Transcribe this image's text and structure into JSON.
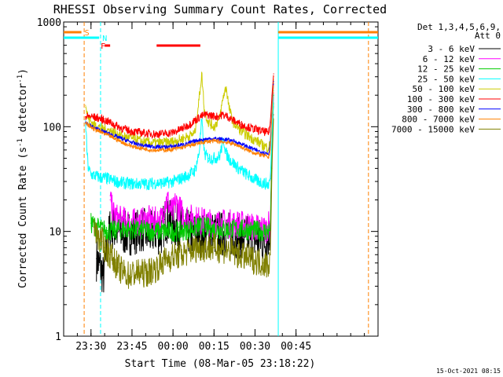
{
  "chart_data": {
    "type": "line",
    "title": "RHESSI Observing Summary Count Rates, Corrected",
    "ylabel_prefix": "Corrected Count Rate (s",
    "ylabel_exp": "-1",
    "ylabel_suffix": " detector",
    "ylabel_close": ")",
    "xlabel": "Start Time (08-Mar-05 23:18:22)",
    "y_scale": "log",
    "ylim": [
      1,
      1000
    ],
    "y_ticks": [
      {
        "label": "1",
        "value": 1
      },
      {
        "label": "10",
        "value": 10
      },
      {
        "label": "100",
        "value": 100
      },
      {
        "label": "1000",
        "value": 1000
      }
    ],
    "x_range_min": [
      -40,
      75
    ],
    "x_ticks": [
      {
        "label": "23:30",
        "min": -30
      },
      {
        "label": "23:45",
        "min": -15
      },
      {
        "label": "00:00",
        "min": 0
      },
      {
        "label": "00:15",
        "min": 15
      },
      {
        "label": "00:30",
        "min": 30
      },
      {
        "label": "00:45",
        "min": 45
      }
    ],
    "legend_header": [
      "Det 1,3,4,5,6,9,",
      "Att 0"
    ],
    "series": [
      {
        "name": "3 - 6 keV",
        "color": "#000000",
        "points": [
          [
            -28,
            5.5
          ],
          [
            -27,
            4.8
          ],
          [
            -26,
            4.2
          ],
          [
            -25.5,
            3.6
          ],
          [
            -23,
            11
          ],
          [
            -20,
            10
          ],
          [
            -17,
            9.5
          ],
          [
            -15,
            9.8
          ],
          [
            -13,
            10
          ],
          [
            -11,
            10.5
          ],
          [
            -9,
            9.2
          ],
          [
            -7,
            10
          ],
          [
            -4,
            9.5
          ],
          [
            -3,
            13
          ],
          [
            -1,
            12
          ],
          [
            2,
            11
          ],
          [
            5,
            10
          ],
          [
            8,
            9.5
          ],
          [
            11,
            9
          ],
          [
            14,
            9.5
          ],
          [
            17,
            9.5
          ],
          [
            20,
            9.5
          ],
          [
            23,
            9.2
          ],
          [
            26,
            8.8
          ],
          [
            29,
            8.5
          ],
          [
            32,
            8.2
          ],
          [
            34,
            8.0
          ],
          [
            35.6,
            10
          ],
          [
            36.2,
            60
          ],
          [
            36.8,
            200
          ]
        ]
      },
      {
        "name": "6 - 12 keV",
        "color": "#ff00ff",
        "points": [
          [
            -23,
            20
          ],
          [
            -22,
            15
          ],
          [
            -20,
            13
          ],
          [
            -17,
            12.5
          ],
          [
            -15,
            12.2
          ],
          [
            -13,
            12.2
          ],
          [
            -11,
            12.5
          ],
          [
            -9,
            13
          ],
          [
            -7,
            12.5
          ],
          [
            -4,
            13
          ],
          [
            -3,
            19
          ],
          [
            -2,
            20
          ],
          [
            -1,
            16
          ],
          [
            0,
            15
          ],
          [
            1,
            19
          ],
          [
            2,
            17
          ],
          [
            4,
            14
          ],
          [
            6,
            13.5
          ],
          [
            8,
            13
          ],
          [
            11,
            12.5
          ],
          [
            14,
            12
          ],
          [
            17,
            12
          ],
          [
            20,
            12
          ],
          [
            23,
            11.8
          ],
          [
            26,
            11.5
          ],
          [
            29,
            11
          ],
          [
            32,
            10.8
          ],
          [
            34,
            10.5
          ],
          [
            35.6,
            12
          ],
          [
            36.2,
            70
          ],
          [
            36.8,
            210
          ]
        ]
      },
      {
        "name": "12 - 25 keV",
        "color": "#00cc00",
        "points": [
          [
            -30,
            12
          ],
          [
            -28,
            11
          ],
          [
            -26,
            10.5
          ],
          [
            -24,
            10.2
          ],
          [
            -22,
            10
          ],
          [
            -20,
            10.5
          ],
          [
            -17,
            10.5
          ],
          [
            -15,
            10.4
          ],
          [
            -13,
            10.3
          ],
          [
            -11,
            10.3
          ],
          [
            -9,
            10.2
          ],
          [
            -7,
            10
          ],
          [
            -4,
            10
          ],
          [
            -2,
            10
          ],
          [
            0,
            10
          ],
          [
            3,
            10
          ],
          [
            6,
            10.5
          ],
          [
            9,
            11
          ],
          [
            12,
            11
          ],
          [
            15,
            10.5
          ],
          [
            18,
            10.5
          ],
          [
            21,
            10.5
          ],
          [
            24,
            10.5
          ],
          [
            27,
            10.3
          ],
          [
            30,
            10.2
          ],
          [
            33,
            10
          ],
          [
            35,
            10
          ],
          [
            35.6,
            11
          ],
          [
            36.2,
            60
          ],
          [
            36.8,
            200
          ]
        ]
      },
      {
        "name": "25 - 50 keV",
        "color": "#00ffff",
        "points": [
          [
            -32,
            115
          ],
          [
            -31.5,
            60
          ],
          [
            -31,
            40
          ],
          [
            -30,
            35
          ],
          [
            -27,
            33
          ],
          [
            -24,
            32
          ],
          [
            -21,
            30
          ],
          [
            -18,
            29
          ],
          [
            -15,
            28.5
          ],
          [
            -12,
            28.5
          ],
          [
            -9,
            28.5
          ],
          [
            -6,
            29
          ],
          [
            -3,
            29
          ],
          [
            0,
            30
          ],
          [
            3,
            32
          ],
          [
            6,
            35
          ],
          [
            8,
            38
          ],
          [
            9.5,
            55
          ],
          [
            10.5,
            115
          ],
          [
            11.5,
            55
          ],
          [
            13,
            50
          ],
          [
            15,
            50
          ],
          [
            17,
            52
          ],
          [
            18.5,
            75
          ],
          [
            19.5,
            55
          ],
          [
            21,
            48
          ],
          [
            24,
            40
          ],
          [
            27,
            35
          ],
          [
            30,
            31
          ],
          [
            33,
            29
          ],
          [
            35,
            28
          ],
          [
            35.6,
            32
          ],
          [
            36.2,
            80
          ],
          [
            36.8,
            220
          ]
        ]
      },
      {
        "name": "50 - 100 keV",
        "color": "#cccc00",
        "points": [
          [
            -32,
            160
          ],
          [
            -31,
            120
          ],
          [
            -29,
            105
          ],
          [
            -26,
            96
          ],
          [
            -23,
            92
          ],
          [
            -20,
            84
          ],
          [
            -17,
            79
          ],
          [
            -14,
            76
          ],
          [
            -11,
            72
          ],
          [
            -8,
            70
          ],
          [
            -5,
            70
          ],
          [
            -2,
            71
          ],
          [
            0,
            72
          ],
          [
            3,
            76
          ],
          [
            6,
            82
          ],
          [
            8,
            87
          ],
          [
            9.5,
            180
          ],
          [
            10.5,
            320
          ],
          [
            11.5,
            140
          ],
          [
            13,
            110
          ],
          [
            15,
            100
          ],
          [
            17,
            120
          ],
          [
            18.5,
            200
          ],
          [
            19.5,
            240
          ],
          [
            20.5,
            150
          ],
          [
            22,
            110
          ],
          [
            25,
            90
          ],
          [
            28,
            80
          ],
          [
            31,
            72
          ],
          [
            33,
            66
          ],
          [
            35,
            63
          ],
          [
            35.6,
            70
          ],
          [
            36.2,
            160
          ],
          [
            36.8,
            300
          ]
        ]
      },
      {
        "name": "100 - 300 keV",
        "color": "#ff0000",
        "points": [
          [
            -32,
            125
          ],
          [
            -30,
            125
          ],
          [
            -27,
            120
          ],
          [
            -24,
            113
          ],
          [
            -21,
            103
          ],
          [
            -18,
            95
          ],
          [
            -15,
            90
          ],
          [
            -12,
            88
          ],
          [
            -9,
            86
          ],
          [
            -6,
            85
          ],
          [
            -3,
            86
          ],
          [
            0,
            88
          ],
          [
            3,
            95
          ],
          [
            6,
            105
          ],
          [
            8,
            115
          ],
          [
            10,
            125
          ],
          [
            12,
            130
          ],
          [
            14,
            128
          ],
          [
            16,
            125
          ],
          [
            18,
            130
          ],
          [
            20,
            125
          ],
          [
            22,
            115
          ],
          [
            25,
            105
          ],
          [
            28,
            98
          ],
          [
            31,
            93
          ],
          [
            33,
            90
          ],
          [
            35,
            87
          ],
          [
            35.6,
            110
          ],
          [
            36.2,
            200
          ],
          [
            36.8,
            320
          ]
        ]
      },
      {
        "name": "300 - 800 keV",
        "color": "#0000ff",
        "points": [
          [
            -32,
            110
          ],
          [
            -29,
            98
          ],
          [
            -26,
            91
          ],
          [
            -23,
            85
          ],
          [
            -20,
            79
          ],
          [
            -17,
            74
          ],
          [
            -14,
            69
          ],
          [
            -11,
            66
          ],
          [
            -8,
            65
          ],
          [
            -5,
            64
          ],
          [
            -2,
            64
          ],
          [
            0,
            65
          ],
          [
            3,
            67
          ],
          [
            6,
            70
          ],
          [
            9,
            74
          ],
          [
            12,
            76
          ],
          [
            15,
            77
          ],
          [
            18,
            76
          ],
          [
            21,
            74
          ],
          [
            24,
            70
          ],
          [
            27,
            65
          ],
          [
            30,
            60
          ],
          [
            33,
            57
          ],
          [
            35,
            55
          ],
          [
            35.6,
            70
          ],
          [
            36.2,
            150
          ],
          [
            36.8,
            270
          ]
        ]
      },
      {
        "name": "800 - 7000 keV",
        "color": "#ff8000",
        "points": [
          [
            -32,
            108
          ],
          [
            -29,
            95
          ],
          [
            -26,
            88
          ],
          [
            -23,
            81
          ],
          [
            -20,
            74
          ],
          [
            -17,
            68
          ],
          [
            -14,
            64
          ],
          [
            -11,
            62
          ],
          [
            -8,
            60
          ],
          [
            -5,
            60
          ],
          [
            -2,
            60
          ],
          [
            0,
            61
          ],
          [
            3,
            63
          ],
          [
            6,
            66
          ],
          [
            9,
            69
          ],
          [
            12,
            72
          ],
          [
            15,
            73
          ],
          [
            18,
            72
          ],
          [
            21,
            70
          ],
          [
            24,
            66
          ],
          [
            27,
            60
          ],
          [
            30,
            56
          ],
          [
            33,
            53
          ],
          [
            35,
            51
          ],
          [
            35.6,
            60
          ],
          [
            36.2,
            140
          ],
          [
            36.8,
            260
          ]
        ]
      },
      {
        "name": "7000 - 15000 keV",
        "color": "#808000",
        "points": [
          [
            -29,
            11
          ],
          [
            -28,
            9.5
          ],
          [
            -27,
            8.5
          ],
          [
            -26,
            8
          ],
          [
            -25,
            7
          ],
          [
            -24,
            6.5
          ],
          [
            -23,
            6
          ],
          [
            -22,
            5.5
          ],
          [
            -21,
            5
          ],
          [
            -20,
            4.5
          ],
          [
            -18,
            4
          ],
          [
            -16,
            3.8
          ],
          [
            -14,
            4
          ],
          [
            -12,
            4
          ],
          [
            -10,
            4
          ],
          [
            -8,
            4.2
          ],
          [
            -6,
            4.5
          ],
          [
            -4,
            5
          ],
          [
            -2,
            5.5
          ],
          [
            0,
            5.8
          ],
          [
            3,
            6
          ],
          [
            6,
            6.5
          ],
          [
            9,
            7
          ],
          [
            12,
            7
          ],
          [
            15,
            7
          ],
          [
            18,
            6.8
          ],
          [
            21,
            6.5
          ],
          [
            24,
            6
          ],
          [
            27,
            5.6
          ],
          [
            30,
            5.3
          ],
          [
            33,
            5
          ],
          [
            35,
            4.8
          ],
          [
            35.6,
            6
          ],
          [
            36.2,
            40
          ],
          [
            36.8,
            130
          ]
        ]
      }
    ],
    "vertical_lines": [
      {
        "min": -32.5,
        "color": "#ff8000",
        "style": "dash"
      },
      {
        "min": -26.5,
        "color": "#00ffff",
        "style": "dash"
      },
      {
        "min": 38.5,
        "color": "#00ffff",
        "style": "solid"
      },
      {
        "min": 71.5,
        "color": "#ff8000",
        "style": "dash"
      }
    ],
    "flag_bars": [
      {
        "label": "S",
        "color": "#ff8000",
        "row": 0,
        "segments": [
          [
            -40,
            -33.5
          ],
          [
            38.5,
            75
          ]
        ]
      },
      {
        "label": "N",
        "color": "#00ffff",
        "row": 1,
        "segments": [
          [
            -40,
            -27
          ],
          [
            38.5,
            75
          ]
        ]
      },
      {
        "label": "F",
        "color": "#ff0000",
        "row": 2,
        "segments": [
          [
            -25,
            -23
          ],
          [
            -6,
            10
          ]
        ]
      }
    ],
    "grid": false,
    "legend_position": "right"
  },
  "footer": {
    "timestamp": "15-Oct-2021 08:15"
  }
}
